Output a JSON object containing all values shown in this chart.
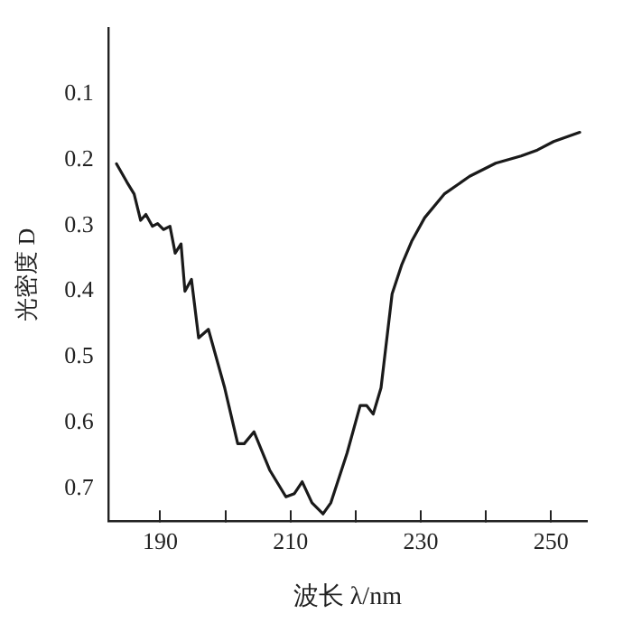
{
  "chart_data": {
    "type": "line",
    "xlabel": "波长 λ/nm",
    "ylabel": "光密度 D",
    "xlim": [
      182,
      255.5
    ],
    "ylim": [
      0.75,
      0
    ],
    "xticks": [
      190,
      {
        "value": 200,
        "label": null
      },
      210,
      {
        "value": 220,
        "label": null
      },
      230,
      {
        "value": 240,
        "label": null
      },
      250
    ],
    "yticks": [
      0.1,
      0.2,
      0.3,
      0.4,
      0.5,
      0.6,
      0.7
    ],
    "grid": false,
    "legend": false,
    "marker": "none",
    "line_style": "solid",
    "series": [
      {
        "color": "#1a1a1a",
        "x": [
          183.3,
          184.9,
          186.0,
          187.0,
          187.8,
          188.8,
          189.6,
          190.5,
          191.5,
          192.3,
          193.2,
          193.8,
          194.8,
          195.9,
          197.4,
          199.9,
          201.9,
          202.9,
          204.4,
          206.8,
          209.3,
          210.6,
          211.8,
          213.3,
          215.0,
          216.2,
          218.7,
          220.7,
          221.7,
          222.7,
          223.9,
          225.6,
          227.1,
          228.6,
          230.6,
          233.6,
          237.5,
          241.5,
          245.4,
          247.9,
          250.4,
          254.4
        ],
        "values": [
          0.206,
          0.234,
          0.252,
          0.292,
          0.283,
          0.301,
          0.297,
          0.306,
          0.301,
          0.342,
          0.328,
          0.4,
          0.382,
          0.471,
          0.458,
          0.547,
          0.632,
          0.632,
          0.614,
          0.672,
          0.713,
          0.708,
          0.69,
          0.722,
          0.739,
          0.722,
          0.646,
          0.574,
          0.574,
          0.587,
          0.547,
          0.404,
          0.359,
          0.324,
          0.288,
          0.252,
          0.225,
          0.205,
          0.194,
          0.185,
          0.172,
          0.158
        ]
      }
    ]
  }
}
